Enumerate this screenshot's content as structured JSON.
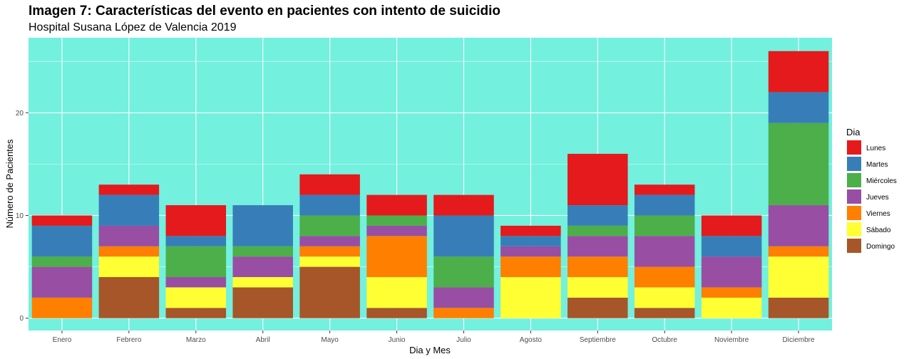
{
  "chart_data": {
    "type": "bar",
    "stacked": true,
    "title": "Imagen 7: Características del evento en pacientes con intento de suicidio",
    "subtitle": "Hospital Susana López de Valencia 2019",
    "xlabel": "Dia y Mes",
    "ylabel": "Número de Pacientes",
    "ylim": [
      -1.2,
      27.3
    ],
    "yticks": [
      0,
      10,
      20
    ],
    "grid": true,
    "background": "#73f0de",
    "legend_title": "Dia",
    "legend_position": "right",
    "categories": [
      "Enero",
      "Febrero",
      "Marzo",
      "Abril",
      "Mayo",
      "Junio",
      "Julio",
      "Agosto",
      "Septiembre",
      "Octubre",
      "Noviembre",
      "Diciembre"
    ],
    "series": [
      {
        "name": "Domingo",
        "color": "#a65628",
        "values": [
          0,
          4,
          1,
          3,
          5,
          1,
          0,
          0,
          2,
          1,
          0,
          2
        ]
      },
      {
        "name": "Sábado",
        "color": "#ffff33",
        "values": [
          0,
          2,
          2,
          1,
          1,
          3,
          0,
          4,
          2,
          2,
          2,
          4
        ]
      },
      {
        "name": "Viernes",
        "color": "#ff7f00",
        "values": [
          2,
          1,
          0,
          0,
          1,
          4,
          1,
          2,
          2,
          2,
          1,
          1
        ]
      },
      {
        "name": "Jueves",
        "color": "#984ea3",
        "values": [
          3,
          2,
          1,
          2,
          1,
          1,
          2,
          1,
          2,
          3,
          3,
          4
        ]
      },
      {
        "name": "Miércoles",
        "color": "#4daf4a",
        "values": [
          1,
          0,
          3,
          1,
          2,
          1,
          3,
          0,
          1,
          2,
          0,
          8
        ]
      },
      {
        "name": "Martes",
        "color": "#377eb8",
        "values": [
          3,
          3,
          1,
          4,
          2,
          0,
          4,
          1,
          2,
          2,
          2,
          3
        ]
      },
      {
        "name": "Lunes",
        "color": "#e41a1c",
        "values": [
          1,
          1,
          3,
          0,
          2,
          2,
          2,
          1,
          5,
          1,
          2,
          4
        ]
      }
    ],
    "legend_order": [
      "Lunes",
      "Martes",
      "Miércoles",
      "Jueves",
      "Viernes",
      "Sábado",
      "Domingo"
    ]
  }
}
